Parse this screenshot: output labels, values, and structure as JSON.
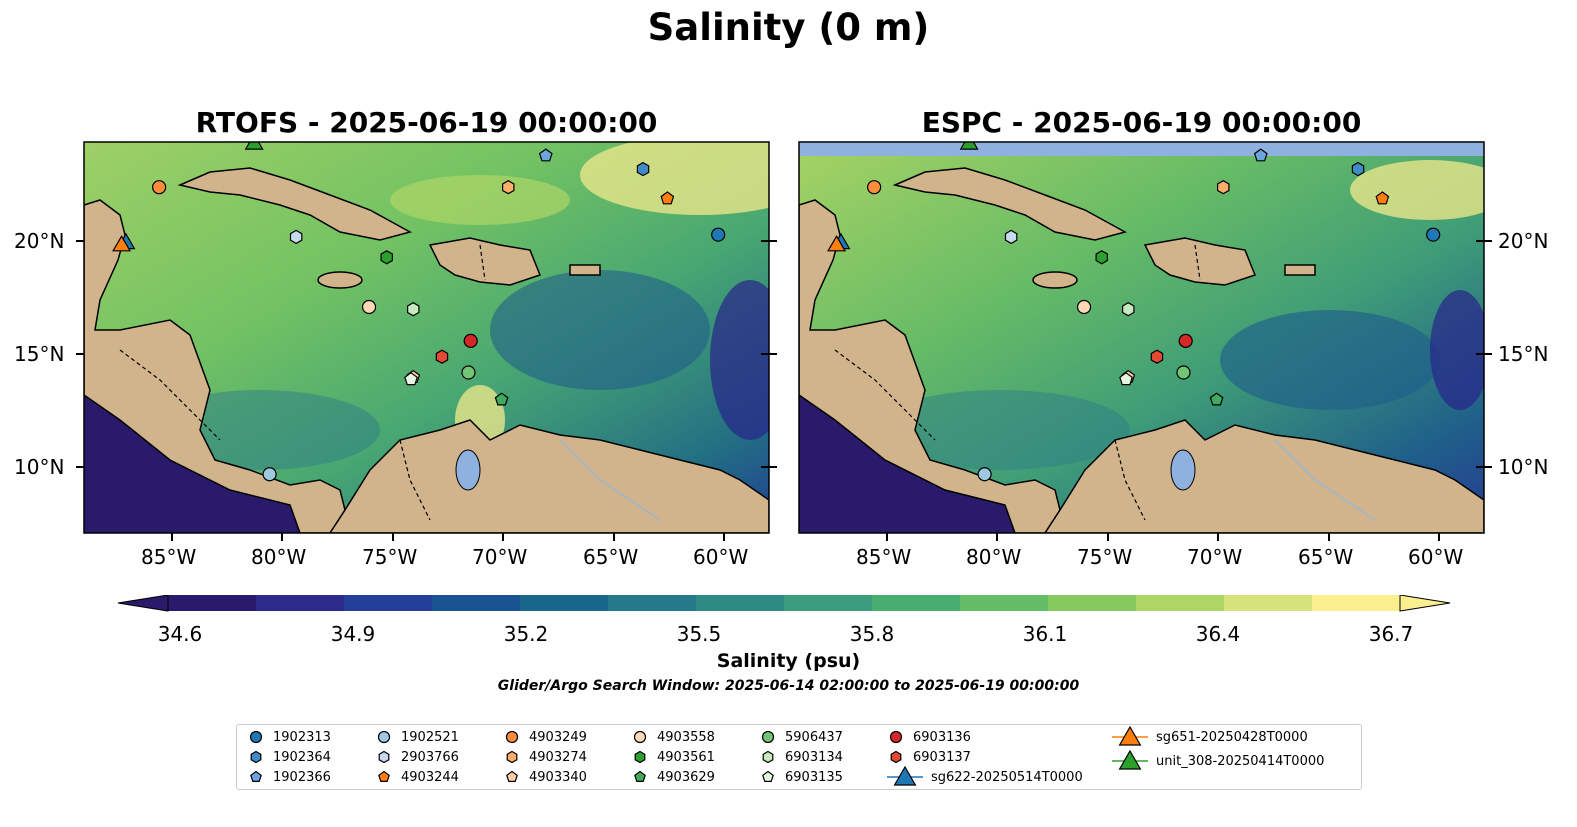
{
  "title": "Salinity (0 m)",
  "panels": [
    {
      "title": "RTOFS - 2025-06-19 00:00:00"
    },
    {
      "title": "ESPC - 2025-06-19 00:00:00"
    }
  ],
  "axes": {
    "x_ticks": [
      "85°W",
      "80°W",
      "75°W",
      "70°W",
      "65°W",
      "60°W"
    ],
    "y_ticks": [
      "20°N",
      "15°N",
      "10°N"
    ]
  },
  "colorbar": {
    "label": "Salinity (psu)",
    "ticks": [
      "34.6",
      "34.9",
      "35.2",
      "35.5",
      "35.8",
      "36.1",
      "36.4",
      "36.7"
    ],
    "min": 34.6,
    "max": 36.7,
    "extend": "both",
    "colormap": "haline",
    "colors": [
      "#2a1a6b",
      "#2e2a8a",
      "#243f98",
      "#1a5391",
      "#19668c",
      "#247a89",
      "#2e8b83",
      "#3a9c7c",
      "#4aad70",
      "#64bd66",
      "#86c95e",
      "#aed666",
      "#d6e27a",
      "#fbee8f"
    ]
  },
  "search_window": "Glider/Argo Search Window: 2025-06-14 02:00:00 to 2025-06-19 00:00:00",
  "map_colors": {
    "land": "#d2b48c",
    "coast": "#000000",
    "rivers": "#9cb7d3",
    "lake": "#8fb1df"
  },
  "legend": [
    {
      "label": "1902313",
      "marker": "circle",
      "color": "#1f77b4"
    },
    {
      "label": "1902364",
      "marker": "hexagon",
      "color": "#3f8cc6"
    },
    {
      "label": "1902366",
      "marker": "pentagon",
      "color": "#6aa6dc"
    },
    {
      "label": "1902521",
      "marker": "circle",
      "color": "#9ecae1"
    },
    {
      "label": "2903766",
      "marker": "hexagon",
      "color": "#c6dbef"
    },
    {
      "label": "4903244",
      "marker": "pentagon",
      "color": "#ff7f0e"
    },
    {
      "label": "4903249",
      "marker": "circle",
      "color": "#fd8d3c"
    },
    {
      "label": "4903274",
      "marker": "hexagon",
      "color": "#fdae6b"
    },
    {
      "label": "4903340",
      "marker": "pentagon",
      "color": "#fdd0a2"
    },
    {
      "label": "4903558",
      "marker": "circle",
      "color": "#fdd9b5"
    },
    {
      "label": "4903561",
      "marker": "hexagon",
      "color": "#2ca02c"
    },
    {
      "label": "4903629",
      "marker": "pentagon",
      "color": "#41ab5d"
    },
    {
      "label": "5906437",
      "marker": "circle",
      "color": "#74c476"
    },
    {
      "label": "6903134",
      "marker": "hexagon",
      "color": "#c7e9c0"
    },
    {
      "label": "6903135",
      "marker": "pentagon",
      "color": "#e5f5e0"
    },
    {
      "label": "6903136",
      "marker": "circle",
      "color": "#d62728"
    },
    {
      "label": "6903137",
      "marker": "hexagon",
      "color": "#e34a33"
    },
    {
      "label": "sg622-20250514T0000",
      "marker": "triangle",
      "color": "#1f77b4"
    },
    {
      "label": "sg651-20250428T0000",
      "marker": "triangle",
      "color": "#ff7f0e"
    },
    {
      "label": "unit_308-20250414T0000",
      "marker": "triangle",
      "color": "#2ca02c"
    }
  ],
  "observations": [
    {
      "id": "1902313",
      "lon": -60.3,
      "lat": 20.2
    },
    {
      "id": "1902364",
      "lon": -63.7,
      "lat": 23.1
    },
    {
      "id": "1902366",
      "lon": -68.1,
      "lat": 23.7
    },
    {
      "id": "1902521",
      "lon": -80.6,
      "lat": 9.6
    },
    {
      "id": "2903766",
      "lon": -79.4,
      "lat": 20.1
    },
    {
      "id": "4903244",
      "lon": -62.6,
      "lat": 21.8
    },
    {
      "id": "4903249",
      "lon": -85.6,
      "lat": 22.3
    },
    {
      "id": "4903274",
      "lon": -69.8,
      "lat": 22.3
    },
    {
      "id": "4903340",
      "lon": -74.1,
      "lat": 13.9
    },
    {
      "id": "4903558",
      "lon": -76.1,
      "lat": 17.0
    },
    {
      "id": "4903561",
      "lon": -75.3,
      "lat": 19.2
    },
    {
      "id": "4903629",
      "lon": -70.1,
      "lat": 12.9
    },
    {
      "id": "5906437",
      "lon": -71.6,
      "lat": 14.1
    },
    {
      "id": "6903134",
      "lon": -74.1,
      "lat": 16.9
    },
    {
      "id": "6903135",
      "lon": -74.2,
      "lat": 13.8
    },
    {
      "id": "6903136",
      "lon": -71.5,
      "lat": 15.5
    },
    {
      "id": "6903137",
      "lon": -72.8,
      "lat": 14.8
    },
    {
      "id": "sg622-20250514T0000",
      "lon": -87.1,
      "lat": 19.8
    },
    {
      "id": "sg651-20250428T0000",
      "lon": -87.3,
      "lat": 19.7
    },
    {
      "id": "unit_308-20250414T0000",
      "lon": -81.3,
      "lat": 24.2
    }
  ]
}
